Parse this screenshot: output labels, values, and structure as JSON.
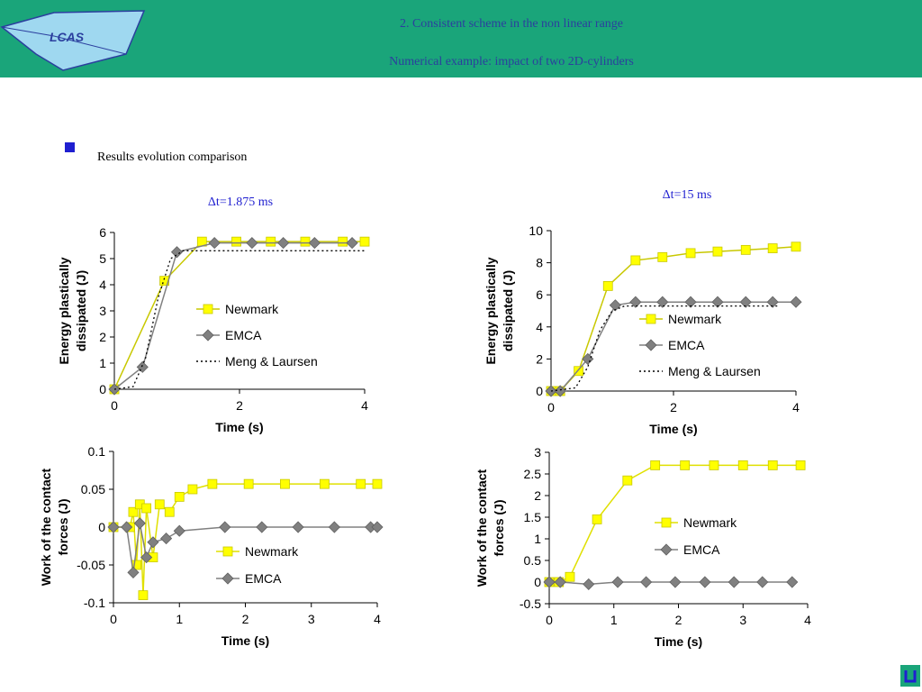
{
  "header": {
    "title_lines": [
      "2. Consistent scheme in the non linear range",
      "Numerical example: impact of two 2D-cylinders"
    ]
  },
  "bullet": "Results evolution comparison",
  "dt_labels": [
    "Δt=1.875 ms",
    "Δt=15 ms"
  ],
  "chart_data": [
    {
      "type": "line",
      "y_label": [
        "Energy plastically",
        "dissipated (J)"
      ],
      "x_label": "Time (s)",
      "xlim": [
        0,
        4
      ],
      "xticks": [
        0,
        2,
        4
      ],
      "ylim": [
        0,
        6
      ],
      "yticks": [
        0,
        1,
        2,
        3,
        4,
        5,
        6
      ],
      "series": [
        {
          "name": "Newmark",
          "color": "#ffff00",
          "line_color": "#c8c800",
          "marker": "square",
          "x": [
            0,
            0.8,
            1.4,
            1.95,
            2.5,
            3.05,
            3.65,
            4.0
          ],
          "values": [
            0,
            4.15,
            5.65,
            5.65,
            5.65,
            5.65,
            5.65,
            5.65
          ]
        },
        {
          "name": "EMCA",
          "color": "#808080",
          "line_color": "#808080",
          "marker": "diamond",
          "x": [
            0,
            0.45,
            1.0,
            1.6,
            2.2,
            2.7,
            3.2,
            3.8
          ],
          "values": [
            0,
            0.85,
            5.25,
            5.6,
            5.6,
            5.6,
            5.6,
            5.6
          ]
        },
        {
          "name": "Meng & Laursen",
          "color": "#000000",
          "line_color": "#000000",
          "marker": null,
          "dash": true,
          "x": [
            0,
            0.3,
            0.5,
            0.7,
            0.9,
            1.1,
            4.0
          ],
          "values": [
            0,
            0.1,
            1.2,
            3.5,
            5.0,
            5.3,
            5.3
          ]
        }
      ]
    },
    {
      "type": "line",
      "y_label": [
        "Energy plastically",
        "dissipated (J)"
      ],
      "x_label": "Time (s)",
      "xlim": [
        0,
        4
      ],
      "xticks": [
        0,
        2,
        4
      ],
      "ylim": [
        0,
        10
      ],
      "yticks": [
        0,
        2,
        4,
        6,
        8,
        10
      ],
      "series": [
        {
          "name": "Newmark",
          "color": "#ffff00",
          "line_color": "#c8c800",
          "marker": "square",
          "x": [
            0,
            0.15,
            0.45,
            0.93,
            1.38,
            1.82,
            2.28,
            2.72,
            3.18,
            3.62,
            4.0
          ],
          "values": [
            0,
            0,
            1.25,
            6.55,
            8.15,
            8.35,
            8.6,
            8.7,
            8.8,
            8.9,
            9.0
          ]
        },
        {
          "name": "EMCA",
          "color": "#808080",
          "line_color": "#808080",
          "marker": "diamond",
          "x": [
            0,
            0.15,
            0.6,
            1.05,
            1.38,
            1.82,
            2.28,
            2.72,
            3.18,
            3.62,
            4.0
          ],
          "values": [
            0,
            0,
            2.0,
            5.35,
            5.55,
            5.55,
            5.55,
            5.55,
            5.55,
            5.55,
            5.55
          ]
        },
        {
          "name": "Meng & Laursen",
          "color": "#000000",
          "line_color": "#000000",
          "marker": null,
          "dash": true,
          "x": [
            0,
            0.4,
            0.6,
            0.8,
            1.0,
            1.2,
            3.7
          ],
          "values": [
            0,
            0.2,
            1.5,
            3.8,
            5.0,
            5.3,
            5.3
          ]
        }
      ]
    },
    {
      "type": "line",
      "y_label": [
        "Work of the contact",
        "forces (J)"
      ],
      "x_label": "Time (s)",
      "xlim": [
        0,
        4
      ],
      "xticks": [
        0,
        1,
        2,
        3,
        4
      ],
      "ylim": [
        -0.1,
        0.1
      ],
      "yticks": [
        -0.1,
        -0.05,
        0,
        0.05,
        0.1
      ],
      "series": [
        {
          "name": "Newmark",
          "color": "#ffff00",
          "line_color": "#e0e000",
          "marker": "square",
          "x": [
            0,
            0.25,
            0.3,
            0.35,
            0.4,
            0.45,
            0.5,
            0.6,
            0.7,
            0.85,
            1.0,
            1.2,
            1.5,
            2.05,
            2.6,
            3.2,
            3.75,
            4.0
          ],
          "values": [
            0,
            0,
            0.02,
            -0.05,
            0.03,
            -0.09,
            0.025,
            -0.04,
            0.03,
            0.02,
            0.04,
            0.05,
            0.057,
            0.057,
            0.057,
            0.057,
            0.057,
            0.057
          ]
        },
        {
          "name": "EMCA",
          "color": "#808080",
          "line_color": "#808080",
          "marker": "diamond",
          "x": [
            0,
            0.2,
            0.3,
            0.4,
            0.5,
            0.6,
            0.8,
            1.0,
            1.69,
            2.25,
            2.8,
            3.35,
            3.9,
            4.0
          ],
          "values": [
            0,
            0,
            -0.06,
            0.005,
            -0.04,
            -0.02,
            -0.015,
            -0.005,
            0,
            0,
            0,
            0,
            0,
            0
          ]
        }
      ]
    },
    {
      "type": "line",
      "y_label": [
        "Work of the contact",
        "forces (J)"
      ],
      "x_label": "Time (s)",
      "xlim": [
        0,
        4
      ],
      "xticks": [
        0,
        1,
        2,
        3,
        4
      ],
      "ylim": [
        -0.5,
        3
      ],
      "yticks": [
        -0.5,
        0,
        0.5,
        1,
        1.5,
        2,
        2.5,
        3
      ],
      "series": [
        {
          "name": "Newmark",
          "color": "#ffff00",
          "line_color": "#e0e000",
          "marker": "square",
          "x": [
            0,
            0.15,
            0.32,
            0.74,
            1.21,
            1.64,
            2.1,
            2.55,
            3.0,
            3.46,
            3.89
          ],
          "values": [
            0,
            0,
            0.12,
            1.45,
            2.35,
            2.7,
            2.7,
            2.7,
            2.7,
            2.7,
            2.7
          ]
        },
        {
          "name": "EMCA",
          "color": "#808080",
          "line_color": "#808080",
          "marker": "diamond",
          "x": [
            0,
            0.17,
            0.61,
            1.06,
            1.5,
            1.95,
            2.41,
            2.86,
            3.3,
            3.76
          ],
          "values": [
            0,
            0,
            -0.05,
            0,
            0,
            0,
            0,
            0,
            0,
            0
          ]
        }
      ]
    }
  ]
}
